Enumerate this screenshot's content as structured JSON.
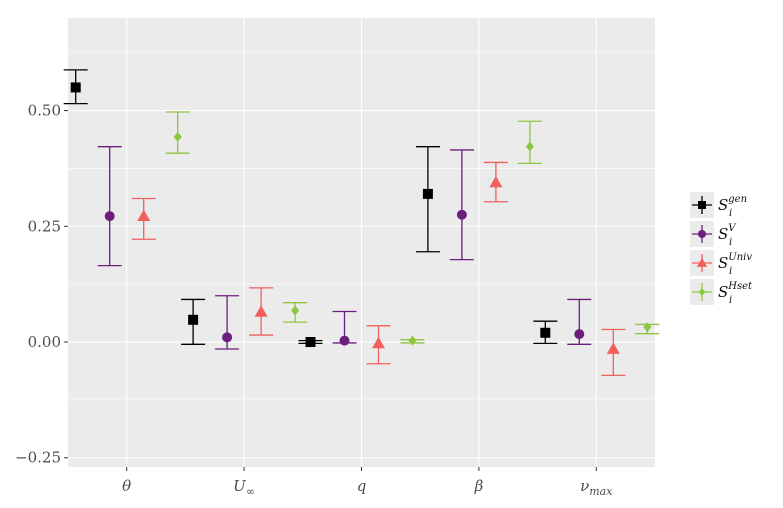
{
  "chart_data": {
    "type": "scatter",
    "subtype": "point-with-errorbars",
    "title": "",
    "xlabel": "",
    "ylabel": "",
    "categories": [
      "θ",
      "U∞",
      "q",
      "β",
      "νmax"
    ],
    "category_display": [
      {
        "main": "θ",
        "sub": ""
      },
      {
        "main": "U",
        "sub": "∞"
      },
      {
        "main": "q",
        "sub": ""
      },
      {
        "main": "β",
        "sub": ""
      },
      {
        "main": "ν",
        "sub": "max"
      }
    ],
    "ylim": [
      -0.27,
      0.7
    ],
    "yticks": [
      -0.25,
      0.0,
      0.25,
      0.5
    ],
    "ytick_labels": [
      "−0.25",
      "0.00",
      "0.25",
      "0.50"
    ],
    "grid": true,
    "legend_position": "right",
    "series": [
      {
        "name": "S_i^gen",
        "label_main": "S",
        "label_sub": "i",
        "label_sup": "gen",
        "color": "#000000",
        "marker": "square",
        "values": [
          0.55,
          0.048,
          0.0,
          0.32,
          0.02
        ],
        "lower": [
          0.515,
          -0.005,
          -0.003,
          0.195,
          -0.003
        ],
        "upper": [
          0.588,
          0.092,
          0.003,
          0.422,
          0.045
        ]
      },
      {
        "name": "S_i^V",
        "label_main": "S",
        "label_sub": "i",
        "label_sup": "V",
        "color": "#6b1f7c",
        "marker": "circle",
        "values": [
          0.272,
          0.01,
          0.003,
          0.275,
          0.017
        ],
        "lower": [
          0.165,
          -0.015,
          -0.002,
          0.178,
          -0.005
        ],
        "upper": [
          0.422,
          0.1,
          0.066,
          0.415,
          0.092
        ]
      },
      {
        "name": "S_i^Univ",
        "label_main": "S",
        "label_sub": "i",
        "label_sup": "Univ",
        "color": "#f0605d",
        "marker": "triangle",
        "values": [
          0.272,
          0.065,
          -0.003,
          0.345,
          -0.015
        ],
        "lower": [
          0.222,
          0.015,
          -0.047,
          0.303,
          -0.072
        ],
        "upper": [
          0.31,
          0.117,
          0.035,
          0.388,
          0.027
        ]
      },
      {
        "name": "S_i^Hset",
        "label_main": "S",
        "label_sub": "i",
        "label_sup": "Hset",
        "color": "#8cc63e",
        "marker": "diamond",
        "values": [
          0.443,
          0.068,
          0.003,
          0.422,
          0.032
        ],
        "lower": [
          0.408,
          0.043,
          -0.002,
          0.386,
          0.018
        ],
        "upper": [
          0.497,
          0.085,
          0.005,
          0.477,
          0.038
        ]
      }
    ]
  }
}
